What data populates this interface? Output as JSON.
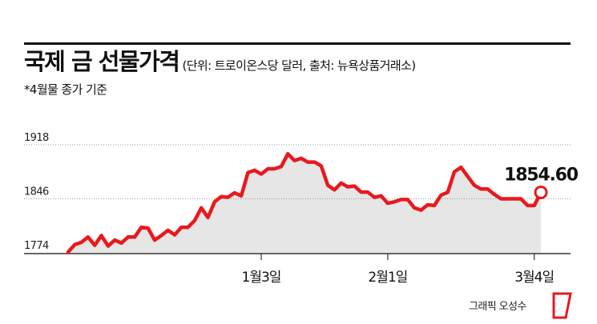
{
  "header": {
    "title": "국제 금 선물가격",
    "unit_note": "(단위: 트로이온스당 달러, 출처: 뉴욕상품거래소)",
    "subtitle": "*4월물 종가 기준"
  },
  "credit": "그래픽 오성수",
  "colors": {
    "line": "#e8191d",
    "area": "#e6e6e6",
    "axis": "#333333",
    "grid": "#9a9a9a"
  },
  "chart_data": {
    "type": "area",
    "title": "국제 금 선물가격",
    "ylabel": "",
    "xlabel": "",
    "ylim": [
      1774,
      1918
    ],
    "yticks": [
      1774,
      1846,
      1918
    ],
    "xticks": [
      {
        "label": "1월3일",
        "index": 29
      },
      {
        "label": "2월1일",
        "index": 48
      },
      {
        "label": "3월4일",
        "index": 70
      }
    ],
    "last_label": "1854.60",
    "series": [
      {
        "values": [
          1775,
          1785,
          1788,
          1795,
          1784,
          1797,
          1783,
          1791,
          1787,
          1795,
          1795,
          1808,
          1807,
          1791,
          1797,
          1804,
          1798,
          1808,
          1808,
          1817,
          1834,
          1821,
          1842,
          1849,
          1848,
          1854,
          1850,
          1881,
          1884,
          1879,
          1886,
          1886,
          1889,
          1906,
          1897,
          1900,
          1895,
          1895,
          1890,
          1864,
          1858,
          1867,
          1862,
          1863,
          1855,
          1855,
          1848,
          1850,
          1840,
          1842,
          1845,
          1845,
          1834,
          1831,
          1838,
          1837,
          1851,
          1854.6,
          1882,
          1888,
          1876,
          1864,
          1859,
          1859,
          1852,
          1846,
          1846,
          1846,
          1846,
          1837,
          1837,
          1854.6
        ]
      }
    ]
  }
}
